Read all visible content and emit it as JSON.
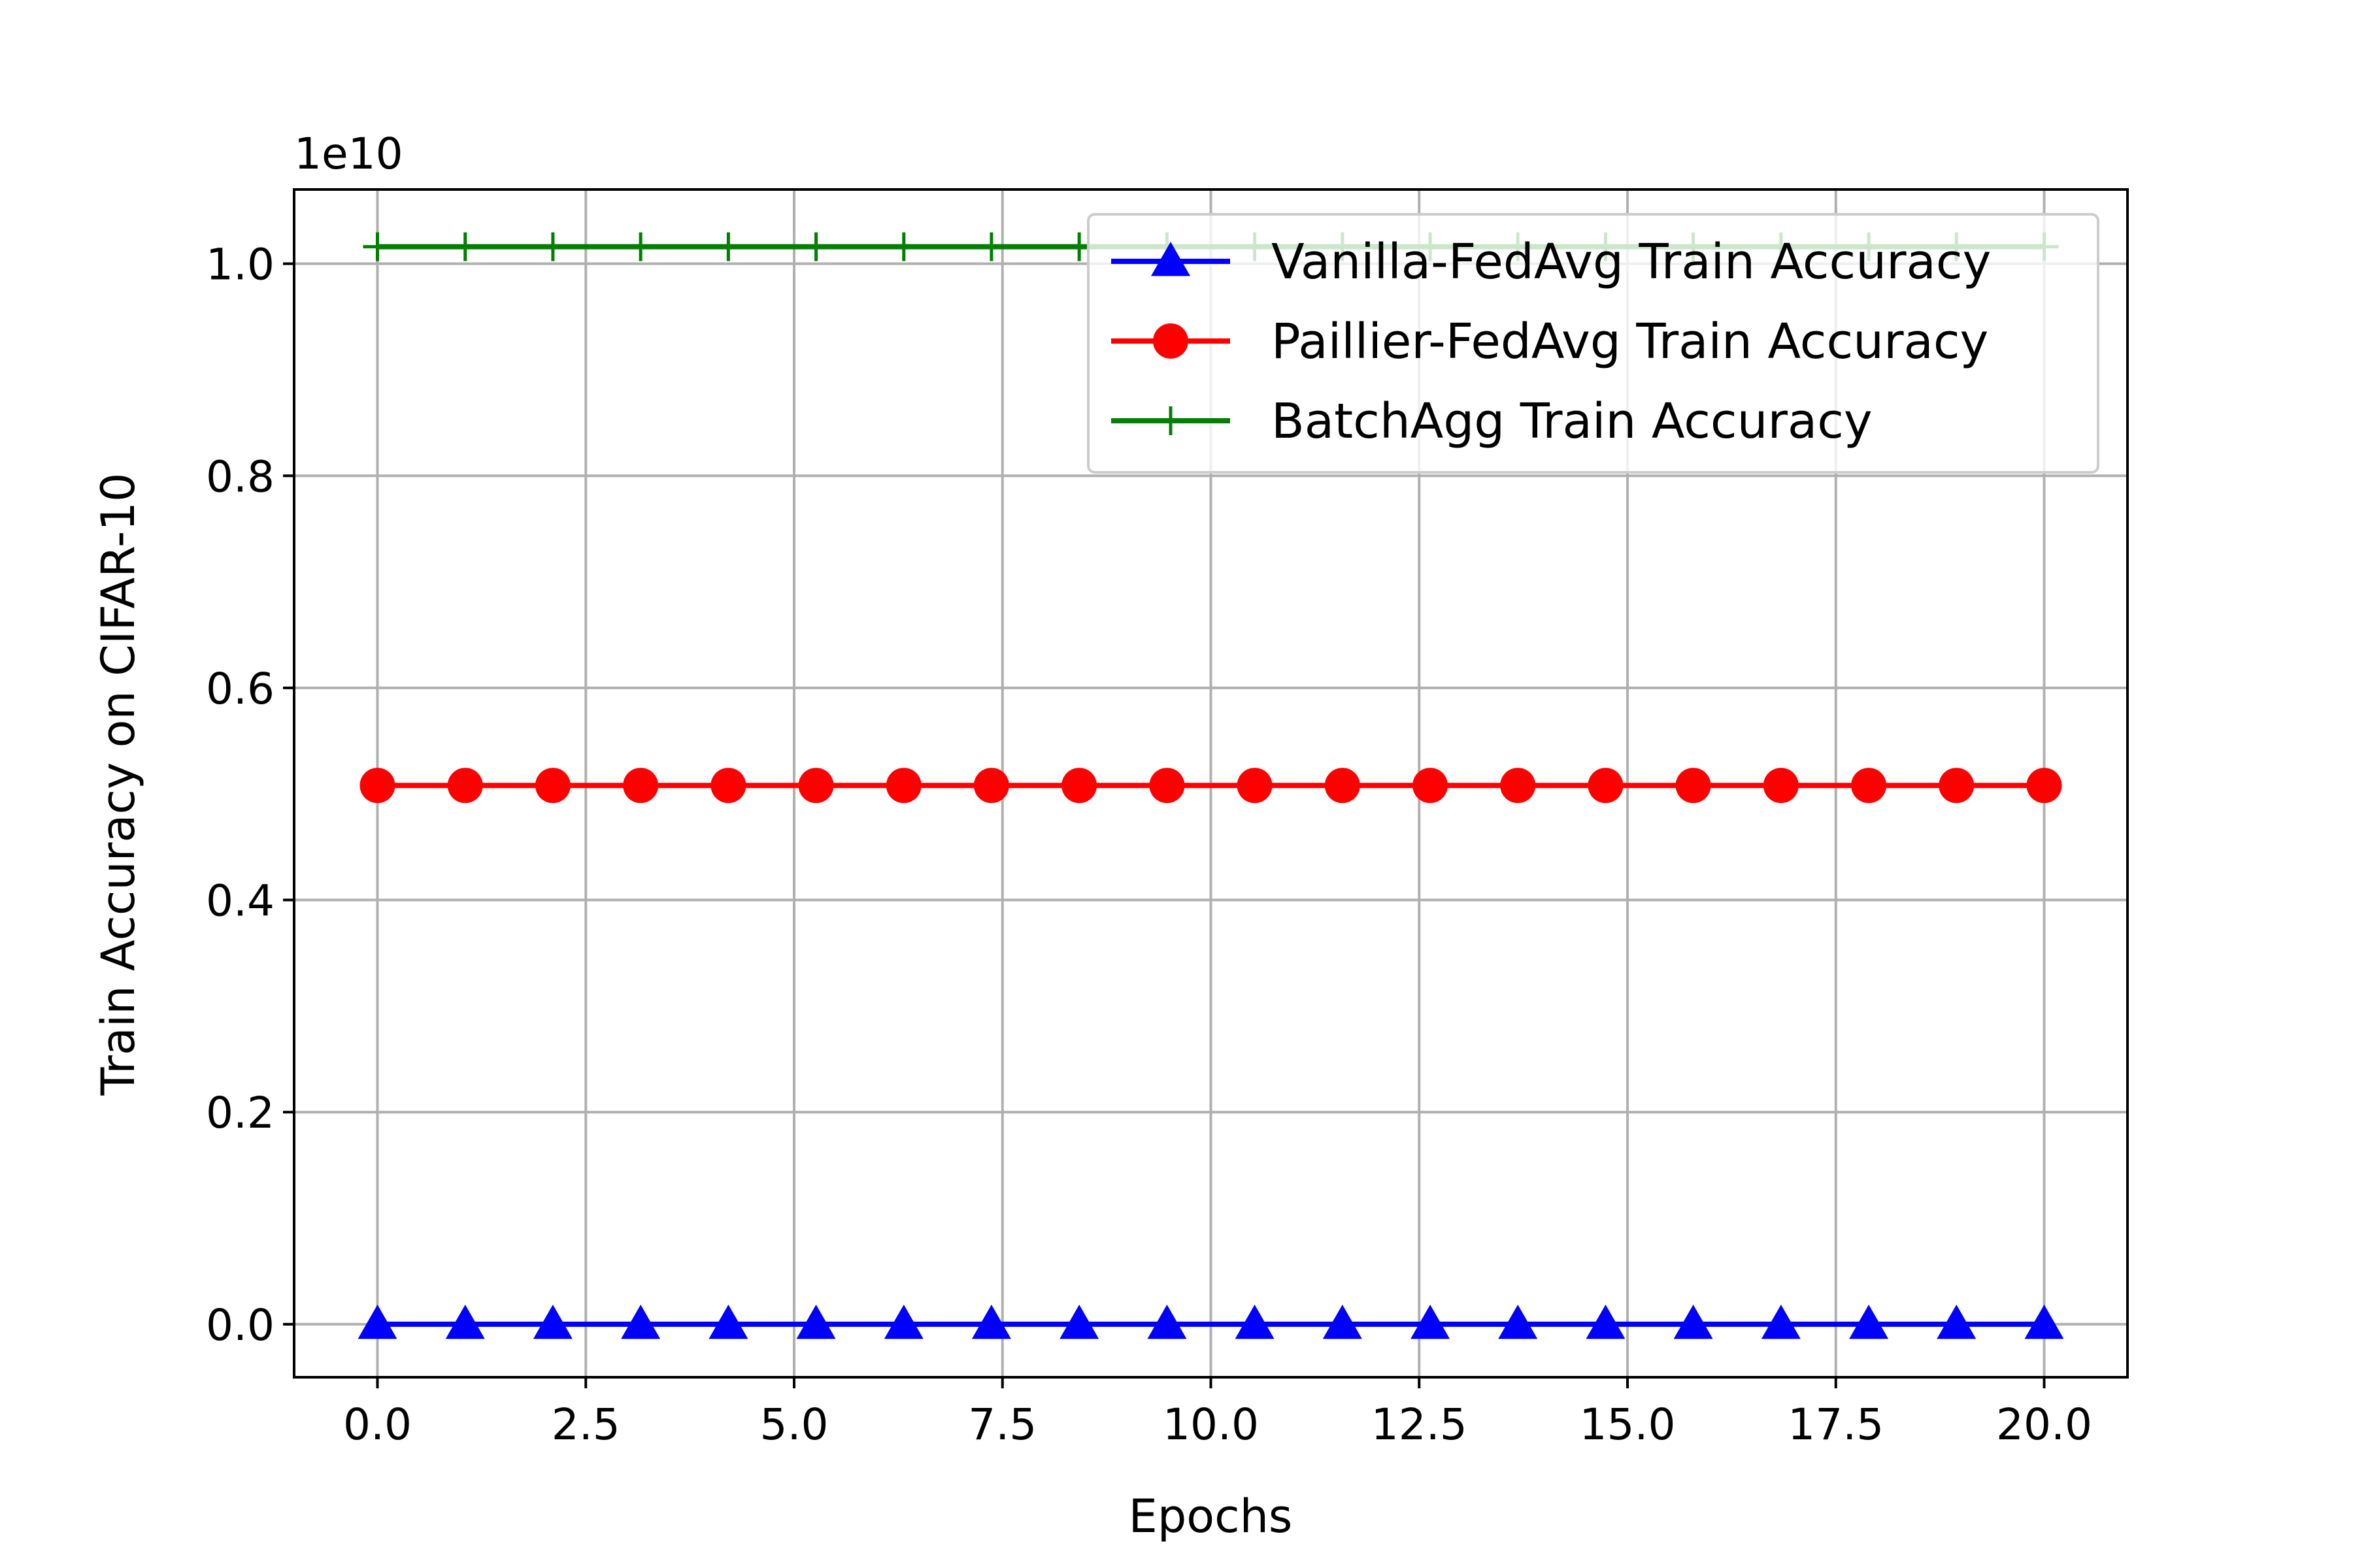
{
  "chart_data": {
    "type": "line",
    "xlabel": "Epochs",
    "ylabel": "Train Accuracy on CIFAR-10",
    "y_offset_label": "1e10",
    "xlim": [
      -1.0,
      21.0
    ],
    "ylim": [
      -0.05,
      1.07
    ],
    "xticks": [
      0.0,
      2.5,
      5.0,
      7.5,
      10.0,
      12.5,
      15.0,
      17.5,
      20.0
    ],
    "xtick_labels": [
      "0.0",
      "2.5",
      "5.0",
      "7.5",
      "10.0",
      "12.5",
      "15.0",
      "17.5",
      "20.0"
    ],
    "yticks": [
      0.0,
      0.2,
      0.4,
      0.6,
      0.8,
      1.0
    ],
    "ytick_labels": [
      "0.0",
      "0.2",
      "0.4",
      "0.6",
      "0.8",
      "1.0"
    ],
    "grid": true,
    "legend_position": "top-right",
    "x": [
      0.0,
      1.053,
      2.105,
      3.158,
      4.211,
      5.263,
      6.316,
      7.368,
      8.421,
      9.474,
      10.526,
      11.579,
      12.632,
      13.684,
      14.737,
      15.789,
      16.842,
      17.895,
      18.947,
      20.0
    ],
    "series": [
      {
        "name": "Vanilla-FedAvg Train Accuracy",
        "color": "#0000ff",
        "marker": "triangle",
        "values": [
          0.0,
          0.0,
          0.0,
          0.0,
          0.0,
          0.0,
          0.0,
          0.0,
          0.0,
          0.0,
          0.0,
          0.0,
          0.0,
          0.0,
          0.0,
          0.0,
          0.0,
          0.0,
          0.0,
          0.0
        ]
      },
      {
        "name": "Paillier-FedAvg Train Accuracy",
        "color": "#ff0000",
        "marker": "circle",
        "values": [
          0.508,
          0.508,
          0.508,
          0.508,
          0.508,
          0.508,
          0.508,
          0.508,
          0.508,
          0.508,
          0.508,
          0.508,
          0.508,
          0.508,
          0.508,
          0.508,
          0.508,
          0.508,
          0.508,
          0.508
        ]
      },
      {
        "name": "BatchAgg Train Accuracy",
        "color": "#008000",
        "marker": "plus",
        "values": [
          1.016,
          1.016,
          1.016,
          1.016,
          1.016,
          1.016,
          1.016,
          1.016,
          1.016,
          1.016,
          1.016,
          1.016,
          1.016,
          1.016,
          1.016,
          1.016,
          1.016,
          1.016,
          1.016,
          1.016
        ]
      }
    ]
  }
}
